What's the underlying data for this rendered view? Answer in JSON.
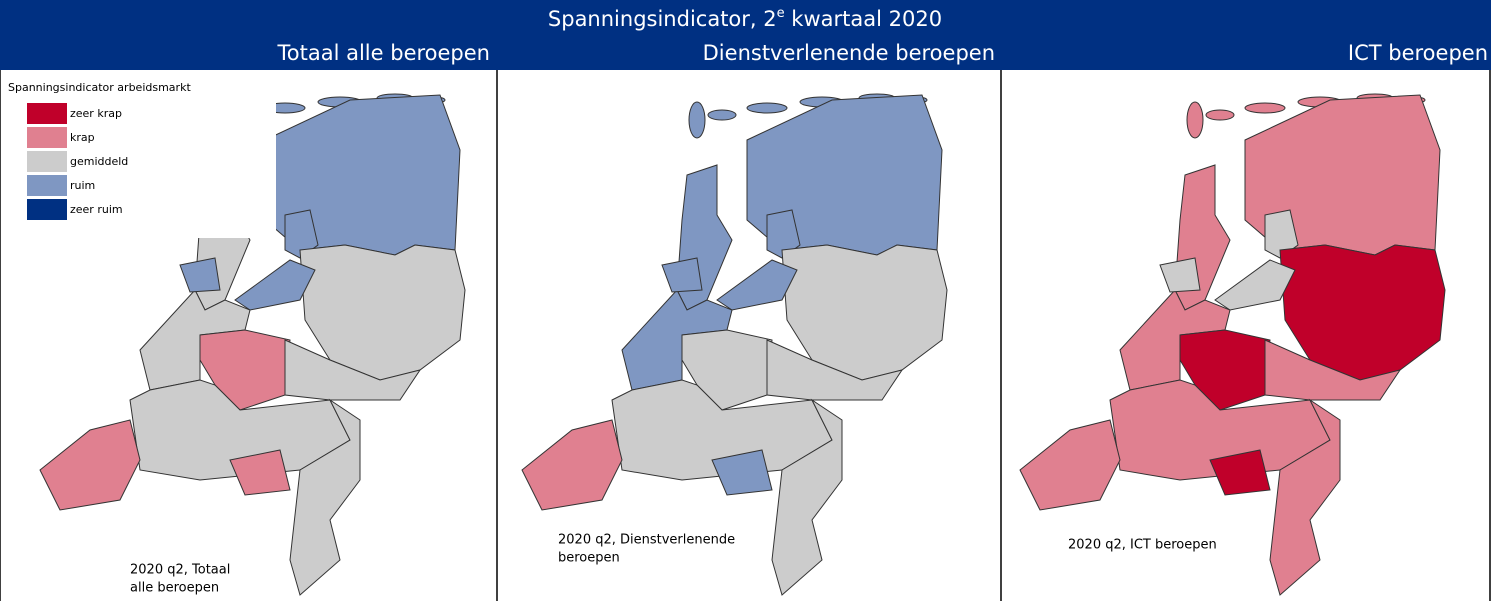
{
  "header": {
    "title": {
      "before": "Spanningsindicator, 2",
      "sup": "e",
      "after": " kwartaal 2020"
    }
  },
  "panels": [
    {
      "heading": "Totaal alle beroepen",
      "caption": [
        "2020 q2, Totaal",
        "alle beroepen"
      ]
    },
    {
      "heading": "Dienstverlenende beroepen",
      "caption": [
        "2020 q2, Dienstverlenende",
        "beroepen"
      ]
    },
    {
      "heading": "ICT beroepen",
      "caption": [
        "2020 q2, ICT beroepen"
      ]
    }
  ],
  "legend": {
    "title": "Spanningsindicator arbeidsmarkt",
    "items": [
      {
        "label": "zeer krap",
        "color": "#c0002a"
      },
      {
        "label": "krap",
        "color": "#e08090"
      },
      {
        "label": "gemiddeld",
        "color": "#cccccc"
      },
      {
        "label": "ruim",
        "color": "#7f97c2"
      },
      {
        "label": "zeer ruim",
        "color": "#003082"
      }
    ]
  }
}
